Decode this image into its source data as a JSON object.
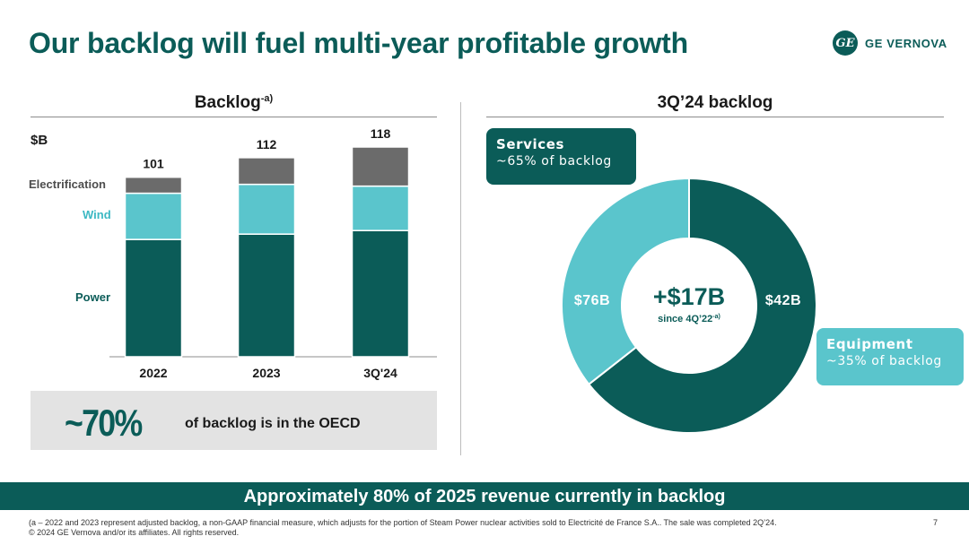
{
  "header": {
    "title": "Our backlog will fuel multi-year profitable growth",
    "logo_mark": "GE",
    "logo_text": "GE VERNOVA"
  },
  "left_panel": {
    "title": "Backlog",
    "title_sup": "-a)",
    "unit": "$B",
    "segment_labels": {
      "electrification": "Electrification",
      "wind": "Wind",
      "power": "Power"
    },
    "oecd": {
      "value": "~70%",
      "text": "of backlog is in the OECD"
    }
  },
  "right_panel": {
    "title": "3Q’24 backlog",
    "center_value": "+$17B",
    "center_note": "since 4Q’22",
    "center_note_sup": "-a)",
    "services": {
      "title": "Services",
      "subtitle": "~65% of backlog",
      "value_label": "$76B"
    },
    "equipment": {
      "title": "Equipment",
      "subtitle": "~35% of backlog",
      "value_label": "$42B"
    }
  },
  "banner": {
    "text": "Approximately 80% of 2025 revenue currently in backlog"
  },
  "footer": {
    "note": "(a – 2022 and 2023 represent adjusted backlog, a non-GAAP financial measure, which adjusts for the portion of Steam Power nuclear activities sold to Electricité de France S.A.. The sale was completed 2Q’24.",
    "copyright": "© 2024 GE Vernova and/or its affiliates. All rights reserved.",
    "page": "7"
  },
  "colors": {
    "power": "#0b5c58",
    "wind": "#5ac5cc",
    "electrification": "#6b6b6b",
    "accent": "#0b5c58"
  },
  "chart_data": [
    {
      "type": "bar",
      "stacked": true,
      "title": "Backlog",
      "ylabel": "$B",
      "categories": [
        "2022",
        "2023",
        "3Q'24"
      ],
      "totals": [
        101,
        112,
        118
      ],
      "series": [
        {
          "name": "Power",
          "values": [
            66,
            69,
            71
          ]
        },
        {
          "name": "Wind",
          "values": [
            26,
            28,
            25
          ]
        },
        {
          "name": "Electrification",
          "values": [
            9,
            15,
            22
          ]
        }
      ],
      "ylim": [
        0,
        118
      ]
    },
    {
      "type": "pie",
      "donut": true,
      "title": "3Q’24 backlog",
      "labels": [
        "Services",
        "Equipment"
      ],
      "values": [
        76,
        42
      ],
      "value_labels": [
        "$76B",
        "$42B"
      ]
    }
  ]
}
